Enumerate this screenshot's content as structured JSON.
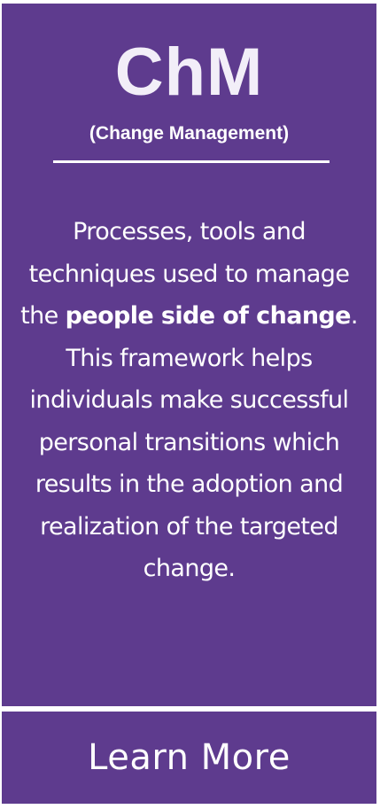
{
  "card": {
    "title": "ChM",
    "subtitle": "(Change Management)",
    "description": {
      "before": "Processes, tools and techniques used to manage the ",
      "emphasis": "people side of change",
      "after": ". This framework helps individuals make successful personal transitions which results in the adoption and realization of the targeted change."
    }
  },
  "footer": {
    "label": "Learn More"
  },
  "colors": {
    "background": "#5e3b8e",
    "text": "#ffffff",
    "page": "#ffffff"
  }
}
